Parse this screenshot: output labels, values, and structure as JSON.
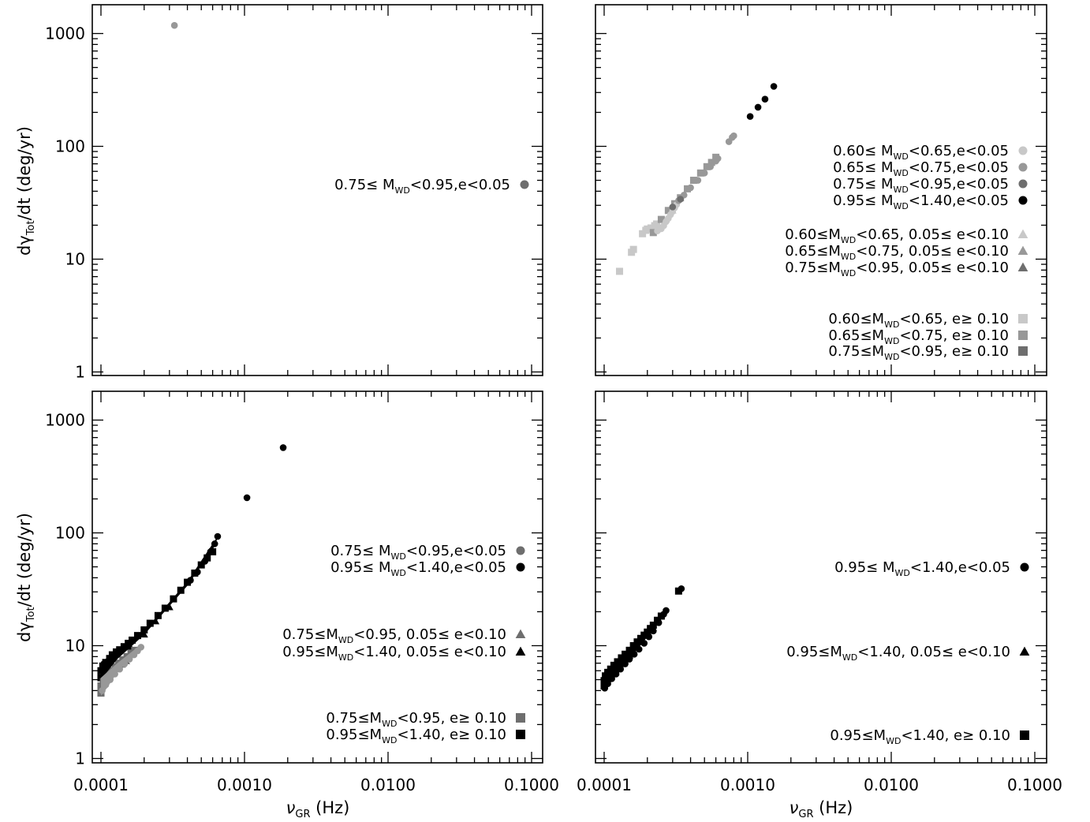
{
  "figure": {
    "ylabel_main": "dγ",
    "ylabel_sub": "Tot",
    "ylabel_rest": "/dt  (deg/yr)",
    "xlabel_main": "ν",
    "xlabel_sub": "GR",
    "xlabel_rest": "  (Hz)"
  },
  "colors": {
    "light": "#c8c8c8",
    "mid": "#989898",
    "dark": "#6e6e6e",
    "black": "#000000"
  },
  "chart_data": [
    {
      "type": "scatter",
      "panel": "top-left",
      "xscale": "log",
      "yscale": "log",
      "xlim": [
        0.0001,
        0.1
      ],
      "ylim": [
        1,
        1000
      ],
      "xticklabels": [
        "0.0001",
        "0.0010",
        "0.0100",
        "0.1000"
      ],
      "yticklabels": [
        "1",
        "10",
        "100",
        "1000"
      ],
      "show_xticklabels": false,
      "show_yticklabels": true,
      "legend": [
        {
          "label": "0.75≤ M_WD<0.95,e<0.05",
          "pre": "0.75≤ M",
          "sub": "WD",
          "post": "<0.95,e<0.05",
          "marker": "circle",
          "color": "dark"
        }
      ],
      "series": [
        {
          "marker": "circle",
          "color": "mid",
          "points": [
            [
              0.000325,
              1180
            ]
          ]
        }
      ]
    },
    {
      "type": "scatter",
      "panel": "top-right",
      "xscale": "log",
      "yscale": "log",
      "xlim": [
        0.0001,
        0.1
      ],
      "ylim": [
        1,
        1000
      ],
      "xticklabels": [
        "0.0001",
        "0.0010",
        "0.0100",
        "0.1000"
      ],
      "yticklabels": [
        "1",
        "10",
        "100",
        "1000"
      ],
      "show_xticklabels": false,
      "show_yticklabels": false,
      "legend": [
        {
          "label": "0.60≤ M_WD<0.65,e<0.05",
          "pre": "0.60≤ M",
          "sub": "WD",
          "post": "<0.65,e<0.05",
          "marker": "circle",
          "color": "light",
          "group": 0
        },
        {
          "label": "0.65≤ M_WD<0.75,e<0.05",
          "pre": "0.65≤ M",
          "sub": "WD",
          "post": "<0.75,e<0.05",
          "marker": "circle",
          "color": "mid",
          "group": 0
        },
        {
          "label": "0.75≤ M_WD<0.95,e<0.05",
          "pre": "0.75≤ M",
          "sub": "WD",
          "post": "<0.95,e<0.05",
          "marker": "circle",
          "color": "dark",
          "group": 0
        },
        {
          "label": "0.95≤ M_WD<1.40,e<0.05",
          "pre": "0.95≤ M",
          "sub": "WD",
          "post": "<1.40,e<0.05",
          "marker": "circle",
          "color": "black",
          "group": 0
        },
        {
          "label": "0.60≤M_WD<0.65, 0.05≤ e<0.10",
          "pre": "0.60≤M",
          "sub": "WD",
          "post": "<0.65, 0.05≤ e<0.10",
          "marker": "triangle",
          "color": "light",
          "group": 1
        },
        {
          "label": "0.65≤M_WD<0.75, 0.05≤ e<0.10",
          "pre": "0.65≤M",
          "sub": "WD",
          "post": "<0.75, 0.05≤ e<0.10",
          "marker": "triangle",
          "color": "mid",
          "group": 1
        },
        {
          "label": "0.75≤M_WD<0.95, 0.05≤ e<0.10",
          "pre": "0.75≤M",
          "sub": "WD",
          "post": "<0.95, 0.05≤ e<0.10",
          "marker": "triangle",
          "color": "dark",
          "group": 1
        },
        {
          "label": "0.60≤M_WD<0.65, e≥ 0.10",
          "pre": "0.60≤M",
          "sub": "WD",
          "post": "<0.65, e≥ 0.10",
          "marker": "square",
          "color": "light",
          "group": 2
        },
        {
          "label": "0.65≤M_WD<0.75, e≥ 0.10",
          "pre": "0.65≤M",
          "sub": "WD",
          "post": "<0.75, e≥ 0.10",
          "marker": "square",
          "color": "mid",
          "group": 2
        },
        {
          "label": "0.75≤M_WD<0.95, e≥ 0.10",
          "pre": "0.75≤M",
          "sub": "WD",
          "post": "<0.95, e≥ 0.10",
          "marker": "square",
          "color": "dark",
          "group": 2
        }
      ],
      "series": [
        {
          "marker": "square",
          "color": "light",
          "points": [
            [
              0.000128,
              7.8
            ],
            [
              0.000155,
              11.5
            ],
            [
              0.00016,
              12.2
            ],
            [
              0.000185,
              16.8
            ],
            [
              0.000195,
              18.0
            ],
            [
              0.0002,
              18.5
            ],
            [
              0.000212,
              18.9
            ],
            [
              0.000225,
              19.8
            ],
            [
              0.000232,
              20.5
            ]
          ]
        },
        {
          "marker": "square",
          "color": "mid",
          "points": [
            [
              0.00022,
              17.2
            ],
            [
              0.00025,
              22.5
            ],
            [
              0.00028,
              27.0
            ],
            [
              0.00031,
              31.0
            ],
            [
              0.00034,
              35.0
            ],
            [
              0.00038,
              42.0
            ],
            [
              0.00042,
              50.0
            ],
            [
              0.00047,
              58.0
            ],
            [
              0.00052,
              66.0
            ],
            [
              0.00056,
              72.0
            ],
            [
              0.0006,
              80.0
            ]
          ]
        },
        {
          "marker": "circle",
          "color": "light",
          "points": [
            [
              0.000235,
              17.8
            ],
            [
              0.00025,
              18.6
            ],
            [
              0.00026,
              19.8
            ],
            [
              0.00027,
              21.5
            ],
            [
              0.00028,
              23.0
            ],
            [
              0.00029,
              24.8
            ],
            [
              0.0003,
              26.5
            ],
            [
              0.00031,
              28.5
            ],
            [
              0.00032,
              30.5
            ]
          ]
        },
        {
          "marker": "triangle",
          "color": "light",
          "points": [
            [
              0.000245,
              19.0
            ],
            [
              0.00027,
              22.5
            ],
            [
              0.0003,
              27.0
            ]
          ]
        },
        {
          "marker": "circle",
          "color": "mid",
          "points": [
            [
              0.00033,
              33.0
            ],
            [
              0.00036,
              37.0
            ],
            [
              0.0004,
              43.0
            ],
            [
              0.00045,
              50.0
            ],
            [
              0.0005,
              58.0
            ],
            [
              0.00055,
              66.0
            ],
            [
              0.0006,
              74.0
            ],
            [
              0.00062,
              78.0
            ],
            [
              0.00074,
              110.0
            ],
            [
              0.00078,
              120.0
            ],
            [
              0.0008,
              124.0
            ]
          ]
        },
        {
          "marker": "circle",
          "color": "dark",
          "points": [
            [
              0.0003,
              29.0
            ],
            [
              0.00034,
              34.0
            ]
          ]
        },
        {
          "marker": "circle",
          "color": "black",
          "points": [
            [
              0.00104,
              184.0
            ],
            [
              0.00118,
              222.0
            ],
            [
              0.00132,
              262.0
            ],
            [
              0.00152,
              340.0
            ]
          ]
        }
      ]
    },
    {
      "type": "scatter",
      "panel": "bottom-left",
      "xscale": "log",
      "yscale": "log",
      "xlim": [
        0.0001,
        0.1
      ],
      "ylim": [
        1,
        1000
      ],
      "xticklabels": [
        "0.0001",
        "0.0010",
        "0.0100",
        "0.1000"
      ],
      "yticklabels": [
        "1",
        "10",
        "100",
        "1000"
      ],
      "show_xticklabels": true,
      "show_yticklabels": true,
      "legend": [
        {
          "label": "0.75≤ M_WD<0.95,e<0.05",
          "pre": "0.75≤ M",
          "sub": "WD",
          "post": "<0.95,e<0.05",
          "marker": "circle",
          "color": "dark",
          "group": 0
        },
        {
          "label": "0.95≤ M_WD<1.40,e<0.05",
          "pre": "0.95≤ M",
          "sub": "WD",
          "post": "<1.40,e<0.05",
          "marker": "circle",
          "color": "black",
          "group": 0
        },
        {
          "label": "0.75≤M_WD<0.95, 0.05≤ e<0.10",
          "pre": "0.75≤M",
          "sub": "WD",
          "post": "<0.95, 0.05≤ e<0.10",
          "marker": "triangle",
          "color": "dark",
          "group": 1
        },
        {
          "label": "0.95≤M_WD<1.40, 0.05≤ e<0.10",
          "pre": "0.95≤M",
          "sub": "WD",
          "post": "<1.40, 0.05≤ e<0.10",
          "marker": "triangle",
          "color": "black",
          "group": 1
        },
        {
          "label": "0.75≤M_WD<0.95, e≥ 0.10",
          "pre": "0.75≤M",
          "sub": "WD",
          "post": "<0.95, e≥ 0.10",
          "marker": "square",
          "color": "dark",
          "group": 2
        },
        {
          "label": "0.95≤M_WD<1.40, e≥ 0.10",
          "pre": "0.95≤M",
          "sub": "WD",
          "post": "<1.40, e≥ 0.10",
          "marker": "square",
          "color": "black",
          "group": 2
        }
      ],
      "series": [
        {
          "marker": "square",
          "color": "black",
          "points": [
            [
              0.0001,
              5.2
            ],
            [
              0.0001,
              6.0
            ],
            [
              0.000103,
              6.6
            ],
            [
              0.000108,
              7.1
            ],
            [
              0.000115,
              7.7
            ],
            [
              0.00012,
              8.3
            ],
            [
              0.000128,
              8.8
            ],
            [
              0.000135,
              9.2
            ],
            [
              0.000145,
              9.8
            ],
            [
              0.000155,
              10.5
            ],
            [
              0.000165,
              11.2
            ],
            [
              0.00018,
              12.3
            ],
            [
              0.0002,
              13.8
            ],
            [
              0.00022,
              15.8
            ],
            [
              0.00025,
              18.5
            ],
            [
              0.00028,
              21.5
            ],
            [
              0.00032,
              26.0
            ],
            [
              0.00036,
              31.0
            ],
            [
              0.0004,
              36.5
            ],
            [
              0.00045,
              44.0
            ],
            [
              0.0005,
              52.0
            ],
            [
              0.00055,
              60.0
            ],
            [
              0.0006,
              68.0
            ]
          ]
        },
        {
          "marker": "circle",
          "color": "black",
          "points": [
            [
              0.00042,
              38.0
            ],
            [
              0.00047,
              45.0
            ],
            [
              0.00053,
              56.0
            ],
            [
              0.00058,
              68.0
            ],
            [
              0.00062,
              80.0
            ],
            [
              0.00065,
              93.0
            ],
            [
              0.00104,
              205.0
            ],
            [
              0.00186,
              570.0
            ]
          ]
        },
        {
          "marker": "triangle",
          "color": "black",
          "points": [
            [
              0.00016,
              9.8
            ],
            [
              0.0002,
              12.6
            ],
            [
              0.00024,
              16.5
            ],
            [
              0.0003,
              22.0
            ]
          ]
        },
        {
          "marker": "square",
          "color": "dark",
          "points": [
            [
              0.0001,
              3.8
            ],
            [
              0.0001,
              4.1
            ],
            [
              0.0001,
              4.4
            ],
            [
              0.000104,
              4.8
            ],
            [
              0.000108,
              5.2
            ],
            [
              0.000113,
              5.6
            ],
            [
              0.000119,
              6.0
            ],
            [
              0.000126,
              6.5
            ],
            [
              0.000133,
              7.0
            ],
            [
              0.000142,
              7.5
            ],
            [
              0.000152,
              8.0
            ],
            [
              0.000162,
              8.6
            ],
            [
              0.000172,
              9.1
            ]
          ]
        },
        {
          "marker": "triangle",
          "color": "dark",
          "points": [
            [
              0.000105,
              4.6
            ],
            [
              0.000112,
              5.1
            ],
            [
              0.00012,
              5.6
            ],
            [
              0.00013,
              6.2
            ],
            [
              0.00014,
              6.8
            ],
            [
              0.00015,
              7.3
            ]
          ]
        },
        {
          "marker": "circle",
          "color": "mid",
          "points": [
            [
              0.000102,
              4.0
            ],
            [
              0.000108,
              4.5
            ],
            [
              0.000116,
              5.0
            ],
            [
              0.000125,
              5.6
            ],
            [
              0.000135,
              6.2
            ],
            [
              0.000146,
              6.9
            ],
            [
              0.000158,
              7.6
            ],
            [
              0.00017,
              8.3
            ],
            [
              0.00018,
              9.0
            ],
            [
              0.00019,
              9.7
            ]
          ]
        }
      ]
    },
    {
      "type": "scatter",
      "panel": "bottom-right",
      "xscale": "log",
      "yscale": "log",
      "xlim": [
        0.0001,
        0.1
      ],
      "ylim": [
        1,
        1000
      ],
      "xticklabels": [
        "0.0001",
        "0.0010",
        "0.0100",
        "0.1000"
      ],
      "yticklabels": [
        "1",
        "10",
        "100",
        "1000"
      ],
      "show_xticklabels": true,
      "show_yticklabels": false,
      "legend": [
        {
          "label": "0.95≤ M_WD<1.40,e<0.05",
          "pre": "0.95≤ M",
          "sub": "WD",
          "post": "<1.40,e<0.05",
          "marker": "circle",
          "color": "black",
          "group": 0
        },
        {
          "label": "0.95≤M_WD<1.40, 0.05≤ e<0.10",
          "pre": "0.95≤M",
          "sub": "WD",
          "post": "<1.40, 0.05≤ e<0.10",
          "marker": "triangle",
          "color": "black",
          "group": 1
        },
        {
          "label": "0.95≤M_WD<1.40, e≥ 0.10",
          "pre": "0.95≤M",
          "sub": "WD",
          "post": "<1.40, e≥ 0.10",
          "marker": "square",
          "color": "black",
          "group": 2
        }
      ],
      "series": [
        {
          "marker": "square",
          "color": "black",
          "points": [
            [
              0.0001,
              4.4
            ],
            [
              0.0001,
              4.9
            ],
            [
              0.000102,
              5.4
            ],
            [
              0.000106,
              5.8
            ],
            [
              0.000111,
              6.2
            ],
            [
              0.000117,
              6.7
            ],
            [
              0.000124,
              7.2
            ],
            [
              0.000132,
              7.8
            ],
            [
              0.00014,
              8.4
            ],
            [
              0.00015,
              9.1
            ],
            [
              0.00016,
              10.0
            ],
            [
              0.00017,
              10.8
            ],
            [
              0.00018,
              11.6
            ],
            [
              0.00019,
              12.4
            ],
            [
              0.0002,
              13.2
            ],
            [
              0.00021,
              14.2
            ],
            [
              0.00022,
              15.2
            ],
            [
              0.000235,
              16.8
            ],
            [
              0.00025,
              18.3
            ],
            [
              0.00033,
              30.5
            ]
          ]
        },
        {
          "marker": "circle",
          "color": "black",
          "points": [
            [
              0.000101,
              4.2
            ],
            [
              0.000106,
              4.6
            ],
            [
              0.000113,
              5.1
            ],
            [
              0.000121,
              5.6
            ],
            [
              0.00013,
              6.2
            ],
            [
              0.00014,
              6.9
            ],
            [
              0.00015,
              7.6
            ],
            [
              0.000162,
              8.4
            ],
            [
              0.000175,
              9.3
            ],
            [
              0.00019,
              10.5
            ],
            [
              0.000205,
              12.0
            ],
            [
              0.00022,
              13.5
            ],
            [
              0.00024,
              16.0
            ],
            [
              0.00026,
              19.0
            ],
            [
              0.00027,
              20.5
            ],
            [
              0.000345,
              32.0
            ]
          ]
        },
        {
          "marker": "triangle",
          "color": "black",
          "points": [
            [
              0.00012,
              5.8
            ],
            [
              0.00015,
              8.2
            ],
            [
              0.00018,
              10.8
            ],
            [
              0.00021,
              13.6
            ]
          ]
        }
      ]
    }
  ]
}
